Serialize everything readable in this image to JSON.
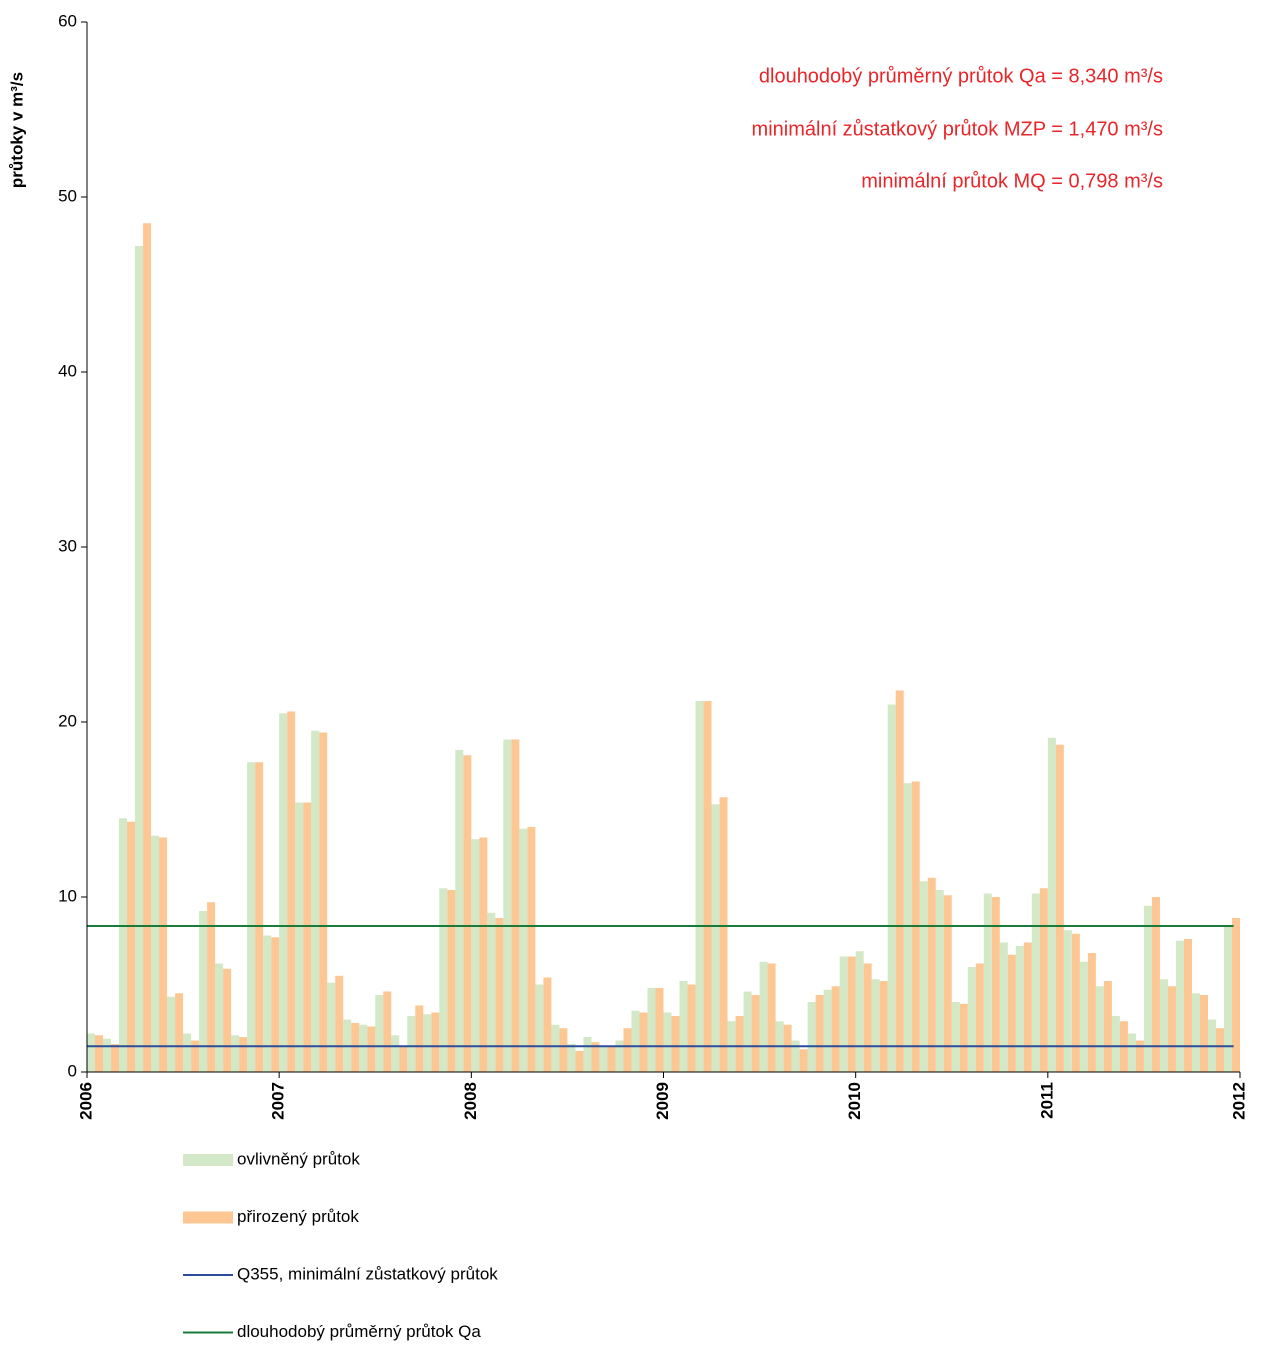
{
  "chart_data": {
    "type": "bar",
    "y_label": "průtoky v m³/s",
    "annotations": [
      "dlouhodobý průměrný  průtok Qa = 8,340  m³/s",
      "minimální zůstatkový průtok MZP = 1,470  m³/s",
      "minimální průtok MQ = 0,798  m³/s"
    ],
    "categories": [
      null,
      null,
      null,
      null,
      null,
      null,
      null,
      null,
      null,
      null,
      null,
      null,
      null,
      null,
      null,
      null,
      null,
      null,
      null,
      null,
      null,
      null,
      null,
      null,
      null,
      null,
      null,
      null,
      null,
      null,
      null,
      null,
      null,
      null,
      null,
      null,
      null,
      null,
      null,
      null,
      null,
      null,
      null,
      null,
      null,
      null,
      null,
      null,
      null,
      null,
      null,
      null,
      null,
      null,
      null,
      null,
      null,
      null,
      null,
      null,
      null,
      null,
      null,
      null,
      null,
      null,
      null,
      null,
      null,
      null,
      null,
      null
    ],
    "series": [
      {
        "name": "ovlivněný průtok",
        "color": "#d3e8c6",
        "values": [
          2.2,
          1.9,
          14.5,
          47.2,
          13.5,
          4.3,
          2.2,
          9.2,
          6.2,
          2.1,
          17.7,
          7.8,
          20.5,
          15.4,
          19.5,
          5.1,
          3.0,
          2.7,
          4.4,
          2.1,
          3.2,
          3.3,
          10.5,
          18.4,
          13.3,
          9.1,
          19.0,
          13.9,
          5.0,
          2.7,
          1.6,
          2.0,
          1.5,
          1.8,
          3.5,
          4.8,
          3.4,
          5.2,
          21.2,
          15.3,
          2.9,
          4.6,
          6.3,
          2.9,
          1.8,
          4.0,
          4.7,
          6.6,
          6.9,
          5.3,
          21.0,
          16.5,
          10.9,
          10.4,
          4.0,
          6.0,
          10.2,
          7.4,
          7.2,
          10.2,
          19.1,
          8.1,
          6.3,
          4.9,
          3.2,
          2.2,
          9.5,
          5.3,
          7.5,
          4.5,
          3.0,
          8.4
        ]
      },
      {
        "name": "přirozený průtok",
        "color": "#fcc793",
        "values": [
          2.1,
          1.6,
          14.3,
          48.5,
          13.4,
          4.5,
          1.8,
          9.7,
          5.9,
          2.0,
          17.7,
          7.7,
          20.6,
          15.4,
          19.4,
          5.5,
          2.8,
          2.6,
          4.6,
          1.5,
          3.8,
          3.4,
          10.4,
          18.1,
          13.4,
          8.8,
          19.0,
          14.0,
          5.4,
          2.5,
          1.2,
          1.7,
          1.5,
          2.5,
          3.4,
          4.8,
          3.2,
          5.0,
          21.2,
          15.7,
          3.2,
          4.4,
          6.2,
          2.7,
          1.3,
          4.4,
          4.9,
          6.6,
          6.2,
          5.2,
          21.8,
          16.6,
          11.1,
          10.1,
          3.9,
          6.2,
          10.0,
          6.7,
          7.4,
          10.5,
          18.7,
          7.9,
          6.8,
          5.2,
          2.9,
          1.8,
          10.0,
          4.9,
          7.6,
          4.4,
          2.5,
          8.8
        ]
      }
    ],
    "hlines": [
      {
        "name": "Q355, minimální zůstatkový průtok",
        "color": "#2a4e9c",
        "value": 1.47
      },
      {
        "name": "dlouhodobý průměrný průtok Qa",
        "color": "#1a7a3a",
        "value": 8.34
      }
    ],
    "xlim": [
      2006,
      2012
    ],
    "xticks": [
      2006,
      2007,
      2008,
      2009,
      2010,
      2011,
      2012
    ],
    "ylim": [
      0,
      60
    ],
    "yticks": [
      0,
      10,
      20,
      30,
      40,
      50,
      60
    ]
  }
}
